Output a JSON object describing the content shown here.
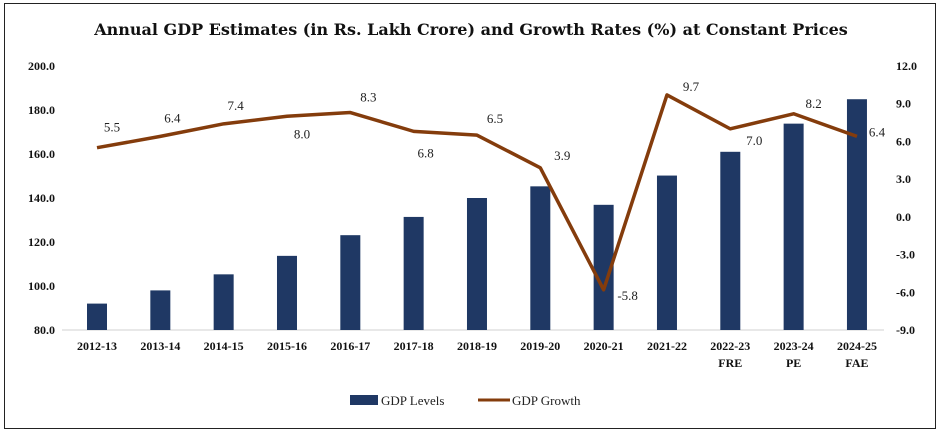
{
  "chart_data": {
    "type": "bar+line",
    "title": "Annual GDP Estimates (in Rs. Lakh Crore) and Growth Rates (%) at Constant Prices",
    "categories": [
      [
        "2012-13"
      ],
      [
        "2013-14"
      ],
      [
        "2014-15"
      ],
      [
        "2015-16"
      ],
      [
        "2016-17"
      ],
      [
        "2017-18"
      ],
      [
        "2018-19"
      ],
      [
        "2019-20"
      ],
      [
        "2020-21"
      ],
      [
        "2021-22"
      ],
      [
        "2022-23",
        "FRE"
      ],
      [
        "2023-24",
        "PE"
      ],
      [
        "2024-25",
        "FAE"
      ]
    ],
    "series": [
      {
        "name": "GDP Levels",
        "type": "bar",
        "axis": "left",
        "color": "#1f3864",
        "values": [
          92.0,
          98.0,
          105.3,
          113.7,
          123.1,
          131.4,
          140.0,
          145.3,
          136.9,
          150.2,
          161.0,
          173.8,
          184.9
        ]
      },
      {
        "name": "GDP Growth",
        "type": "line",
        "axis": "right",
        "color": "#843c0c",
        "values": [
          5.5,
          6.4,
          7.4,
          8.0,
          8.3,
          6.8,
          6.5,
          3.9,
          -5.8,
          9.7,
          7.0,
          8.2,
          6.4
        ]
      }
    ],
    "y_left": {
      "range": [
        80,
        200
      ],
      "ticks": [
        "80.0",
        "100.0",
        "120.0",
        "140.0",
        "160.0",
        "180.0",
        "200.0"
      ]
    },
    "y_right": {
      "range": [
        -9,
        12
      ],
      "ticks": [
        "-9.0",
        "-6.0",
        "-3.0",
        "0.0",
        "3.0",
        "6.0",
        "9.0",
        "12.0"
      ]
    },
    "grid": false,
    "legend": "bottom"
  }
}
